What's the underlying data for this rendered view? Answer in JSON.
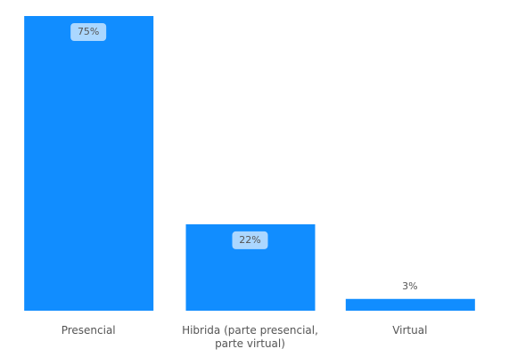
{
  "chart_data": {
    "type": "bar",
    "categories": [
      "Presencial",
      "Hibrida (parte presencial, parte virtual)",
      "Virtual"
    ],
    "values": [
      75,
      22,
      3
    ],
    "value_labels": [
      "75%",
      "22%",
      "3%"
    ],
    "color": "#118DFF"
  }
}
